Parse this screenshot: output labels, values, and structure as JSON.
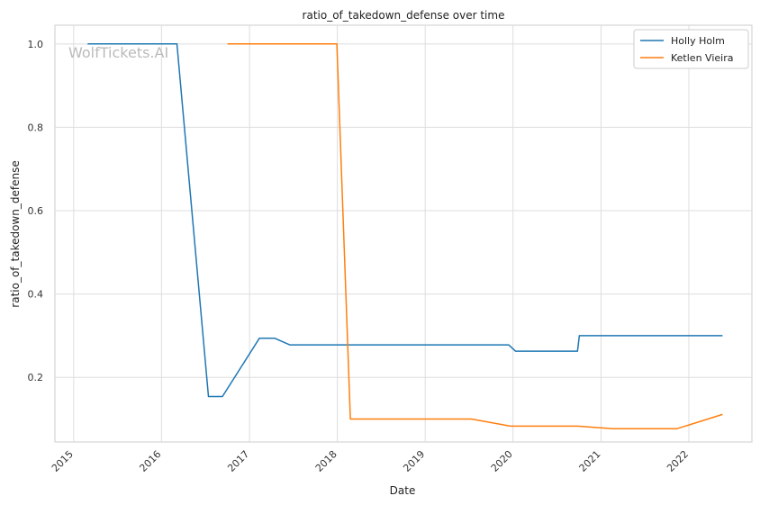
{
  "chart_data": {
    "type": "line",
    "title": "ratio_of_takedown_defense over time",
    "xlabel": "Date",
    "ylabel": "ratio_of_takedown_defense",
    "watermark": "WolfTickets.AI",
    "x_ticks": [
      "2015",
      "2016",
      "2017",
      "2018",
      "2019",
      "2020",
      "2021",
      "2022"
    ],
    "y_ticks": [
      "0.2",
      "0.4",
      "0.6",
      "0.8",
      "1.0"
    ],
    "xlim": [
      "2014-10-15",
      "2022-09-20"
    ],
    "ylim": [
      0.045,
      1.045
    ],
    "grid": true,
    "legend_position": "top-right",
    "series": [
      {
        "name": "Holly Holm",
        "color": "#1f77b4",
        "points": [
          [
            "2015-02-28",
            1.0
          ],
          [
            "2016-03-05",
            1.0
          ],
          [
            "2016-07-14",
            0.154
          ],
          [
            "2016-09-10",
            0.154
          ],
          [
            "2017-02-11",
            0.294
          ],
          [
            "2017-04-15",
            0.294
          ],
          [
            "2017-06-17",
            0.278
          ],
          [
            "2019-12-14",
            0.278
          ],
          [
            "2020-01-11",
            0.263
          ],
          [
            "2020-09-25",
            0.263
          ],
          [
            "2020-10-03",
            0.3
          ],
          [
            "2022-05-21",
            0.3
          ]
        ]
      },
      {
        "name": "Ketlen Vieira",
        "color": "#ff7f0e",
        "points": [
          [
            "2016-10-01",
            1.0
          ],
          [
            "2017-12-30",
            1.0
          ],
          [
            "2018-02-24",
            0.1
          ],
          [
            "2019-07-13",
            0.1
          ],
          [
            "2019-12-21",
            0.083
          ],
          [
            "2020-09-25",
            0.083
          ],
          [
            "2021-02-20",
            0.077
          ],
          [
            "2021-11-13",
            0.077
          ],
          [
            "2022-05-21",
            0.111
          ]
        ]
      }
    ]
  }
}
